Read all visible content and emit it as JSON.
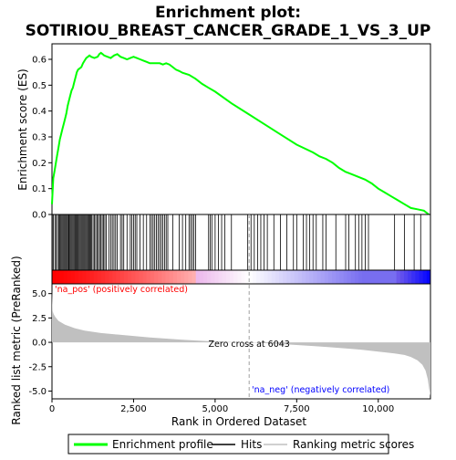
{
  "chart_data": {
    "type": "line",
    "title_line1": "Enrichment plot:",
    "title_line2": "SOTIRIOU_BREAST_CANCER_GRADE_1_VS_3_UP",
    "xlabel": "Rank in Ordered Dataset",
    "ylabel_top": "Enrichment score (ES)",
    "ylabel_bottom": "Ranked list metric (PreRanked)",
    "xlim": [
      0,
      11600
    ],
    "es_ylim": [
      0.0,
      0.66
    ],
    "metric_ylim": [
      -5.8,
      6.0
    ],
    "x_ticks": [
      0,
      2500,
      5000,
      7500,
      10000
    ],
    "x_tick_labels": [
      "0",
      "2,500",
      "5,000",
      "7,500",
      "10,000"
    ],
    "es_ticks": [
      0.0,
      0.1,
      0.2,
      0.3,
      0.4,
      0.5,
      0.6
    ],
    "es_tick_labels": [
      "0.0",
      "0.1",
      "0.2",
      "0.3",
      "0.4",
      "0.5",
      "0.6"
    ],
    "metric_ticks": [
      5.0,
      2.5,
      0.0,
      -2.5,
      -5.0
    ],
    "metric_tick_labels": [
      "5.0",
      "2.5",
      "0.0",
      "-2.5",
      "-5.0"
    ],
    "es_curve": {
      "x": [
        0,
        40,
        80,
        120,
        160,
        200,
        240,
        280,
        320,
        360,
        400,
        440,
        480,
        520,
        560,
        600,
        640,
        680,
        720,
        760,
        800,
        850,
        900,
        950,
        1000,
        1050,
        1100,
        1150,
        1200,
        1300,
        1400,
        1450,
        1500,
        1550,
        1600,
        1700,
        1800,
        1900,
        2000,
        2100,
        2200,
        2300,
        2400,
        2500,
        2600,
        2700,
        2800,
        2900,
        3000,
        3100,
        3200,
        3300,
        3400,
        3500,
        3600,
        3700,
        3800,
        3900,
        4000,
        4200,
        4400,
        4600,
        4800,
        5000,
        5500,
        6000,
        6500,
        7000,
        7500,
        8000,
        8200,
        8400,
        8600,
        8800,
        9000,
        9200,
        9400,
        9600,
        9800,
        10000,
        10200,
        10400,
        10600,
        10800,
        11000,
        11200,
        11400,
        11550
      ],
      "y": [
        0.04,
        0.14,
        0.17,
        0.2,
        0.23,
        0.26,
        0.29,
        0.31,
        0.33,
        0.35,
        0.37,
        0.39,
        0.42,
        0.44,
        0.46,
        0.48,
        0.49,
        0.51,
        0.53,
        0.55,
        0.56,
        0.565,
        0.57,
        0.585,
        0.595,
        0.605,
        0.61,
        0.615,
        0.61,
        0.605,
        0.61,
        0.62,
        0.625,
        0.62,
        0.615,
        0.61,
        0.605,
        0.615,
        0.62,
        0.61,
        0.605,
        0.6,
        0.605,
        0.61,
        0.605,
        0.6,
        0.595,
        0.59,
        0.585,
        0.585,
        0.585,
        0.585,
        0.58,
        0.585,
        0.58,
        0.57,
        0.56,
        0.555,
        0.548,
        0.54,
        0.525,
        0.505,
        0.49,
        0.475,
        0.43,
        0.39,
        0.35,
        0.31,
        0.27,
        0.24,
        0.225,
        0.215,
        0.2,
        0.18,
        0.165,
        0.155,
        0.145,
        0.135,
        0.12,
        0.1,
        0.085,
        0.07,
        0.055,
        0.04,
        0.025,
        0.02,
        0.015,
        0.0
      ]
    },
    "hits": [
      10,
      40,
      90,
      130,
      170,
      210,
      240,
      270,
      300,
      330,
      360,
      390,
      420,
      450,
      480,
      510,
      530,
      560,
      590,
      620,
      650,
      680,
      710,
      740,
      770,
      800,
      830,
      860,
      890,
      920,
      950,
      980,
      1010,
      1040,
      1070,
      1100,
      1130,
      1160,
      1190,
      1220,
      1260,
      1300,
      1340,
      1380,
      1420,
      1460,
      1500,
      1540,
      1580,
      1620,
      1660,
      1750,
      1800,
      1850,
      1900,
      1950,
      2000,
      2100,
      2150,
      2200,
      2300,
      2400,
      2450,
      2500,
      2550,
      2600,
      2700,
      2800,
      2900,
      3000,
      3050,
      3100,
      3150,
      3200,
      3250,
      3300,
      3350,
      3400,
      3450,
      3500,
      3550,
      3700,
      3900,
      4000,
      4100,
      4200,
      4250,
      4300,
      4350,
      4400,
      4800,
      4850,
      4900,
      5000,
      5100,
      5200,
      5300,
      5500,
      6000,
      6100,
      6200,
      6300,
      6400,
      6500,
      6600,
      6800,
      7000,
      7200,
      7400,
      7500,
      7700,
      7800,
      7900,
      8000,
      8100,
      8300,
      8400,
      8700,
      9000,
      9100,
      9300,
      9400,
      9500,
      9600,
      9700,
      10500,
      10800,
      11100,
      11300
    ],
    "metric_curve": {
      "x": [
        0,
        20,
        50,
        100,
        200,
        400,
        700,
        1000,
        1500,
        2000,
        2500,
        3000,
        3500,
        4000,
        4500,
        5000,
        5500,
        6043,
        6500,
        7000,
        7500,
        8000,
        8500,
        9000,
        9500,
        10000,
        10500,
        10800,
        11000,
        11200,
        11350,
        11450,
        11520,
        11560,
        11600
      ],
      "y": [
        5.3,
        3.2,
        2.9,
        2.6,
        2.2,
        1.8,
        1.45,
        1.2,
        0.95,
        0.8,
        0.65,
        0.5,
        0.38,
        0.27,
        0.17,
        0.09,
        0.03,
        0.0,
        -0.08,
        -0.17,
        -0.27,
        -0.38,
        -0.5,
        -0.62,
        -0.77,
        -0.95,
        -1.15,
        -1.3,
        -1.5,
        -1.85,
        -2.3,
        -2.9,
        -3.8,
        -4.8,
        -5.5
      ]
    },
    "zero_cross_rank": 6043,
    "zero_cross_label": "Zero cross at 6043",
    "pos_label": "'na_pos' (positively correlated)",
    "neg_label": "'na_neg' (negatively correlated)",
    "legend": [
      {
        "label": "Enrichment profile",
        "color": "#00ff00"
      },
      {
        "label": "Hits",
        "color": "#000000"
      },
      {
        "label": "Ranking metric scores",
        "color": "#c0c0c0"
      }
    ],
    "colors": {
      "es_line": "#00ff00",
      "hit": "#000000",
      "metric_fill": "#c0c0c0",
      "pos_strong": "#ff0000",
      "neutral": "#ffffff",
      "neg_strong": "#0000ff",
      "pos_label": "#ff0000",
      "neg_label": "#0000ff",
      "zero_line": "#a0a0a0"
    }
  }
}
